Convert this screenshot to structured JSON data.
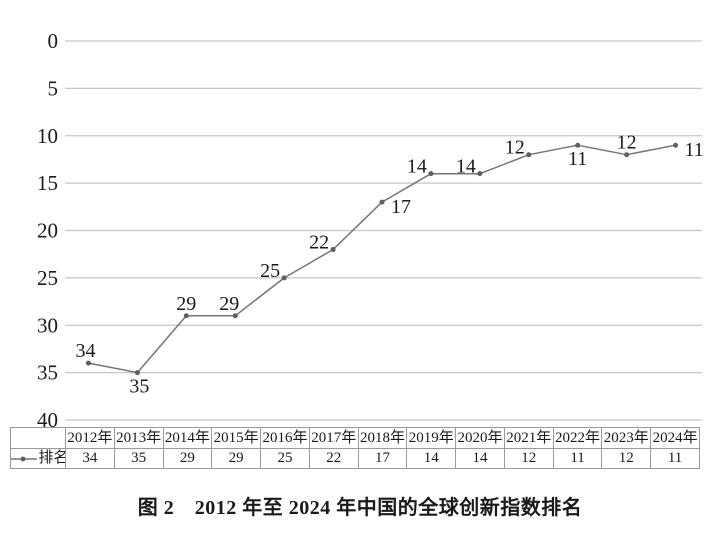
{
  "figure": {
    "caption": "图 2　2012 年至 2024 年中国的全球创新指数排名"
  },
  "legend": {
    "series_label": "排名"
  },
  "colors": {
    "line": "#757575",
    "marker": "#5e5e5e",
    "gridline": "#c6c6c6",
    "table_border": "#9a9a9a",
    "text": "#1a1a1a"
  },
  "chart_data": {
    "type": "line",
    "title": "图 2　2012 年至 2024 年中国的全球创新指数排名",
    "categories": [
      "2012年",
      "2013年",
      "2014年",
      "2015年",
      "2016年",
      "2017年",
      "2018年",
      "2019年",
      "2020年",
      "2021年",
      "2022年",
      "2023年",
      "2024年"
    ],
    "series": [
      {
        "name": "排名",
        "values": [
          34,
          35,
          29,
          29,
          25,
          22,
          17,
          14,
          14,
          12,
          11,
          12,
          11
        ]
      }
    ],
    "xlabel": "",
    "ylabel": "",
    "y_ticks": [
      0,
      5,
      10,
      15,
      20,
      25,
      30,
      35,
      40
    ],
    "y_range": [
      0,
      40
    ],
    "y_inverted": true,
    "grid": "horizontal",
    "data_labels_shown": true,
    "data_table_shown": true,
    "legend_position": "data-table-left",
    "label_positions": [
      "above",
      "below",
      "above",
      "above",
      "left",
      "left",
      "right",
      "left",
      "left",
      "left",
      "below",
      "above",
      "right"
    ],
    "label_dx": [
      -3,
      2,
      0,
      -6,
      0,
      0,
      0,
      0,
      0,
      0,
      0,
      0,
      0
    ]
  }
}
